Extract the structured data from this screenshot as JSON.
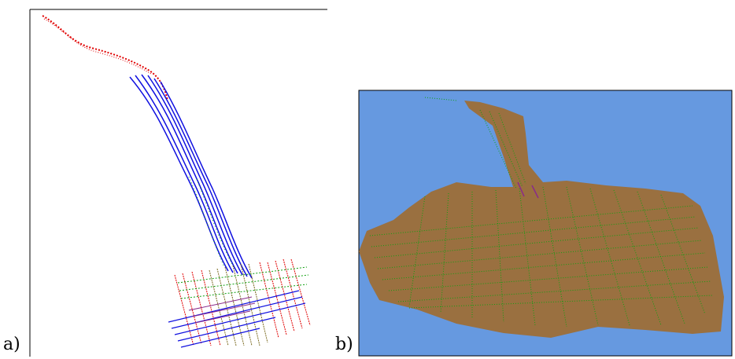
{
  "panels": [
    {
      "label": "a)"
    },
    {
      "label": "b)"
    }
  ],
  "colors": {
    "red": "#e00000",
    "blue": "#1010e0",
    "green": "#10a010",
    "olive": "#7a6a20",
    "purple": "#8a2a8a",
    "terrain": "#9a7040",
    "sky": "#6699e0",
    "frame": "#000000"
  }
}
